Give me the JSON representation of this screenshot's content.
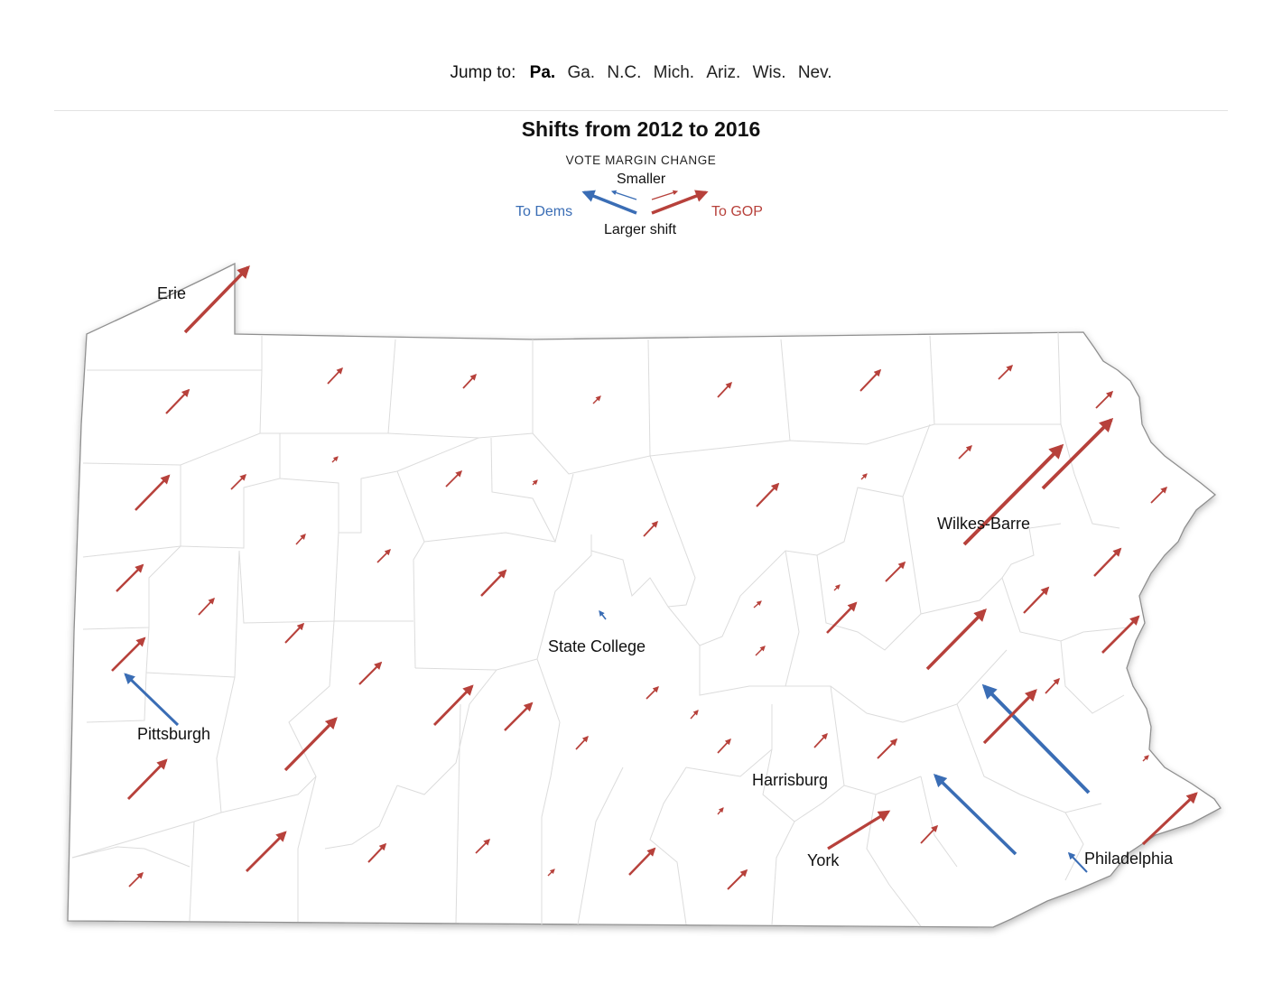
{
  "nav": {
    "lead": "Jump to:",
    "tabs": [
      {
        "label": "Pa.",
        "active": true
      },
      {
        "label": "Ga.",
        "active": false
      },
      {
        "label": "N.C.",
        "active": false
      },
      {
        "label": "Mich.",
        "active": false
      },
      {
        "label": "Ariz.",
        "active": false
      },
      {
        "label": "Wis.",
        "active": false
      },
      {
        "label": "Nev.",
        "active": false
      }
    ]
  },
  "title": "Shifts from 2012 to 2016",
  "legend": {
    "heading": "VOTE MARGIN CHANGE",
    "smaller": "Smaller",
    "larger": "Larger shift",
    "dems": "To Dems",
    "gop": "To GOP"
  },
  "colors": {
    "dem": "#3a6db5",
    "gop": "#b7413b",
    "border": "#d9d9d9",
    "outline": "#9a9a9a"
  },
  "cities": [
    {
      "name": "Erie"
    },
    {
      "name": "Pittsburgh"
    },
    {
      "name": "State College"
    },
    {
      "name": "Wilkes-Barre"
    },
    {
      "name": "Harrisburg"
    },
    {
      "name": "York"
    },
    {
      "name": "Philadelphia"
    }
  ]
}
